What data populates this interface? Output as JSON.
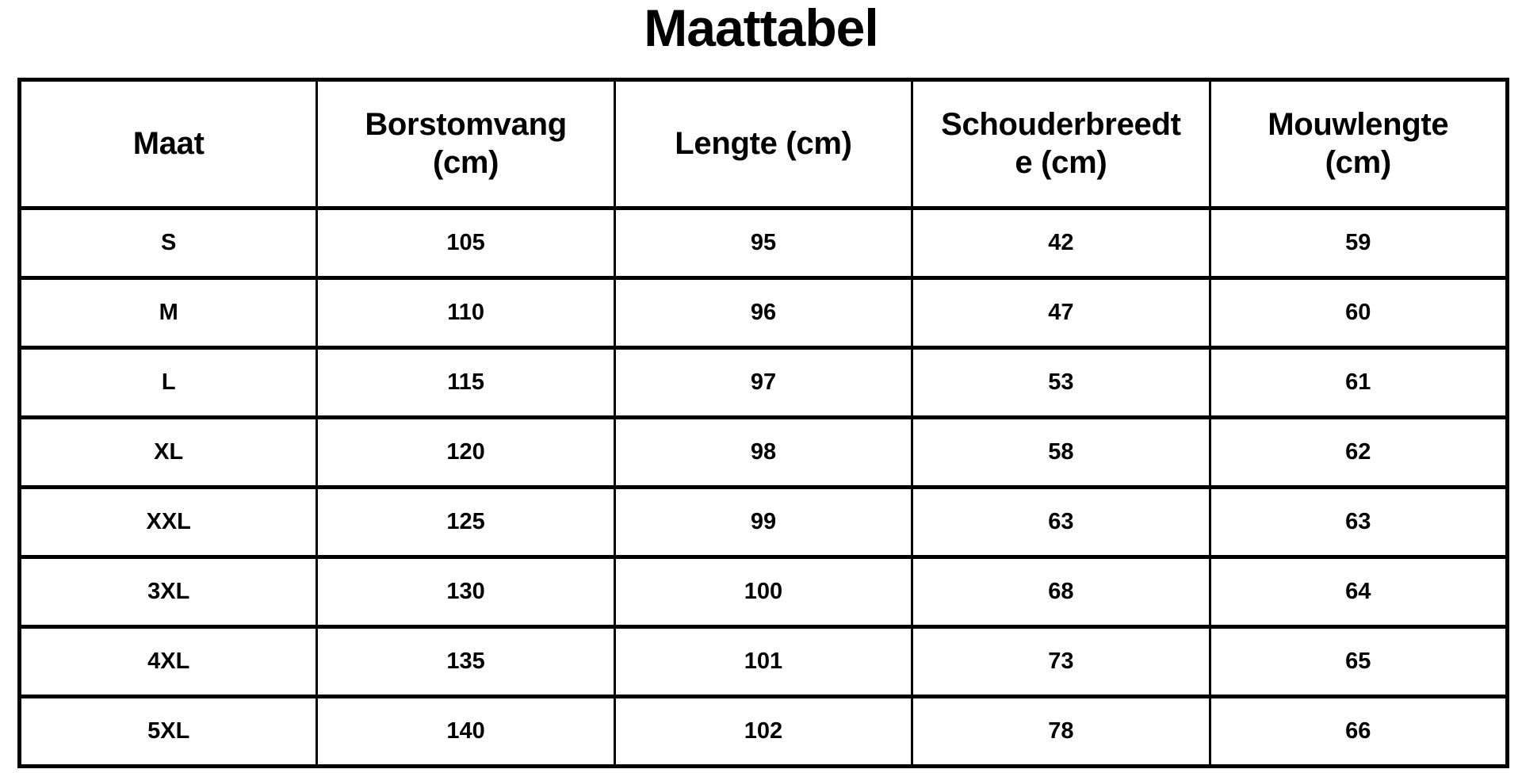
{
  "page": {
    "title": "Maattabel"
  },
  "colors": {
    "background": "#ffffff",
    "border": "#000000",
    "text": "#000000"
  },
  "table": {
    "columns": [
      "Maat",
      "Borstomvang\n(cm)",
      "Lengte (cm)",
      "Schouderbreedt\ne (cm)",
      "Mouwlengte\n(cm)"
    ],
    "rows": [
      [
        "S",
        "105",
        "95",
        "42",
        "59"
      ],
      [
        "M",
        "110",
        "96",
        "47",
        "60"
      ],
      [
        "L",
        "115",
        "97",
        "53",
        "61"
      ],
      [
        "XL",
        "120",
        "98",
        "58",
        "62"
      ],
      [
        "XXL",
        "125",
        "99",
        "63",
        "63"
      ],
      [
        "3XL",
        "130",
        "100",
        "68",
        "64"
      ],
      [
        "4XL",
        "135",
        "101",
        "73",
        "65"
      ],
      [
        "5XL",
        "140",
        "102",
        "78",
        "66"
      ]
    ]
  },
  "chart_data": {
    "type": "table",
    "title": "Maattabel",
    "columns": [
      "Maat",
      "Borstomvang (cm)",
      "Lengte (cm)",
      "Schouderbreedte (cm)",
      "Mouwlengte (cm)"
    ],
    "rows": [
      [
        "S",
        105,
        95,
        42,
        59
      ],
      [
        "M",
        110,
        96,
        47,
        60
      ],
      [
        "L",
        115,
        97,
        53,
        61
      ],
      [
        "XL",
        120,
        98,
        58,
        62
      ],
      [
        "XXL",
        125,
        99,
        63,
        63
      ],
      [
        "3XL",
        130,
        100,
        68,
        64
      ],
      [
        "4XL",
        135,
        101,
        73,
        65
      ],
      [
        "5XL",
        140,
        102,
        78,
        66
      ]
    ]
  }
}
